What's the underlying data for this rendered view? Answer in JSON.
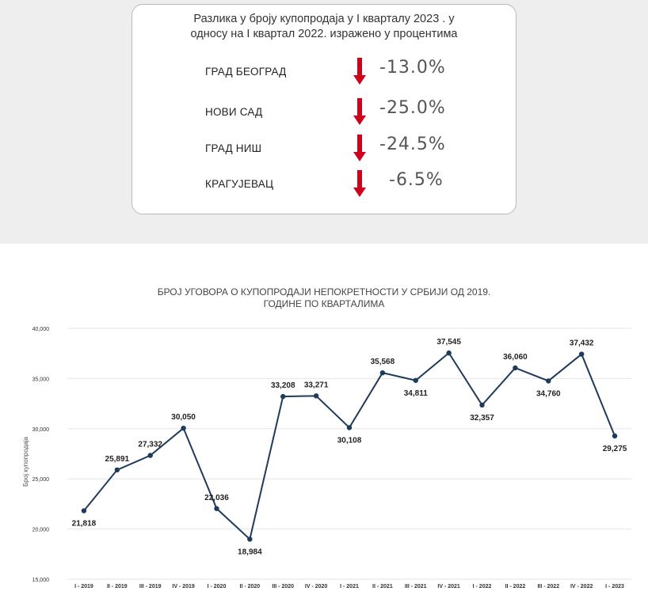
{
  "card": {
    "title_line1": "Разлика у броју купопродаја у I кварталу 2023 . у",
    "title_line2": "односу на I квартал 2022. изражено у процентима",
    "rows": [
      {
        "city": "ГРАД БЕОГРАД",
        "change": "-13.0%",
        "arrow": "down-arrow-icon"
      },
      {
        "city": "НОВИ САД",
        "change": "-25.0%",
        "arrow": "down-arrow-icon"
      },
      {
        "city": "ГРАД НИШ",
        "change": "-24.5%",
        "arrow": "down-arrow-icon"
      },
      {
        "city": "КРАГУЈЕВАЦ",
        "change": "-6.5%",
        "arrow": "down-arrow-icon"
      }
    ],
    "arrow_color": "#d0021b"
  },
  "chart_data": {
    "type": "line",
    "title_line1": "БРОЈ УГОВОРА О КУПОПРОДАЈИ НЕПОКРЕТНОСТИ У СРБИЈИ ОД 2019.",
    "title_line2": "ГОДИНЕ ПО КВАРТАЛИМА",
    "ylabel": "Број купопродаја",
    "ylim": [
      15000,
      40000
    ],
    "yticks": [
      15000,
      20000,
      25000,
      30000,
      35000,
      40000
    ],
    "ytick_labels": [
      "15,000",
      "20,000",
      "25,000",
      "30,000",
      "35,000",
      "40,000"
    ],
    "grid": true,
    "line_color": "#1f3b5c",
    "categories": [
      "I - 2019",
      "II - 2019",
      "III - 2019",
      "IV - 2019",
      "I - 2020",
      "II - 2020",
      "III - 2020",
      "IV - 2020",
      "I - 2021",
      "II - 2021",
      "III - 2021",
      "IV - 2021",
      "I - 2022",
      "II - 2022",
      "III - 2022",
      "IV - 2022",
      "I - 2023"
    ],
    "values": [
      21818,
      25891,
      27332,
      30050,
      22036,
      18984,
      33208,
      33271,
      30108,
      35568,
      34811,
      37545,
      32357,
      36060,
      34760,
      37432,
      29275
    ],
    "value_labels": [
      "21,818",
      "25,891",
      "27,332",
      "30,050",
      "22,036",
      "18,984",
      "33,208",
      "33,271",
      "30,108",
      "35,568",
      "34,811",
      "37,545",
      "32,357",
      "36,060",
      "34,760",
      "37,432",
      "29,275"
    ],
    "label_positions": [
      "below",
      "above",
      "above",
      "above",
      "above",
      "below",
      "above",
      "above",
      "below",
      "above",
      "below",
      "above",
      "below",
      "above",
      "below",
      "above",
      "below"
    ]
  }
}
